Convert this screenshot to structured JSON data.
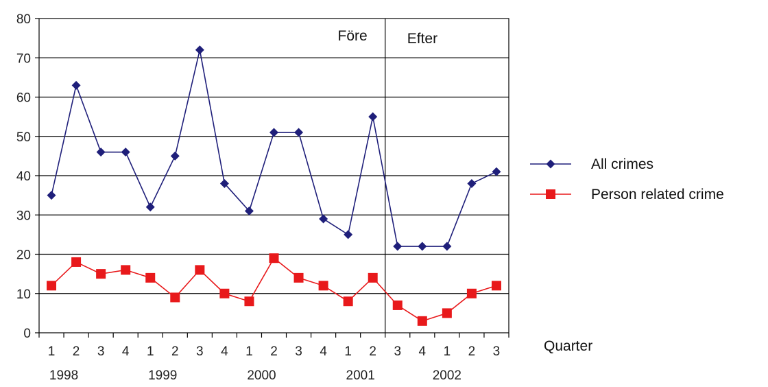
{
  "chart_data": {
    "type": "line",
    "x": [
      "1",
      "2",
      "3",
      "4",
      "1",
      "2",
      "3",
      "4",
      "1",
      "2",
      "3",
      "4",
      "1",
      "2",
      "3",
      "4",
      "1",
      "2",
      "3"
    ],
    "years": [
      {
        "label": "1998",
        "center_index": 0.5
      },
      {
        "label": "1999",
        "center_index": 4.5
      },
      {
        "label": "2000",
        "center_index": 8.5
      },
      {
        "label": "2001",
        "center_index": 12.5
      },
      {
        "label": "2002",
        "center_index": 16
      }
    ],
    "series": [
      {
        "name": "All crimes",
        "color": "#1f1f7a",
        "marker": "diamond",
        "values": [
          35,
          63,
          46,
          46,
          32,
          45,
          72,
          38,
          31,
          51,
          51,
          29,
          25,
          55,
          22,
          22,
          22,
          38,
          41
        ]
      },
      {
        "name": "Person related crime",
        "color": "#e8191b",
        "marker": "square",
        "values": [
          12,
          18,
          15,
          16,
          14,
          9,
          16,
          10,
          8,
          19,
          14,
          12,
          8,
          14,
          7,
          3,
          5,
          10,
          12
        ]
      }
    ],
    "ylim": [
      0,
      80
    ],
    "yticks": [
      0,
      10,
      20,
      30,
      40,
      50,
      60,
      70,
      80
    ],
    "xlabel": "Quarter",
    "ylabel": "",
    "divider_after_index": 13,
    "annotations": [
      "Före",
      "Efter"
    ],
    "grid": "horizontal",
    "legend_position": "right"
  }
}
